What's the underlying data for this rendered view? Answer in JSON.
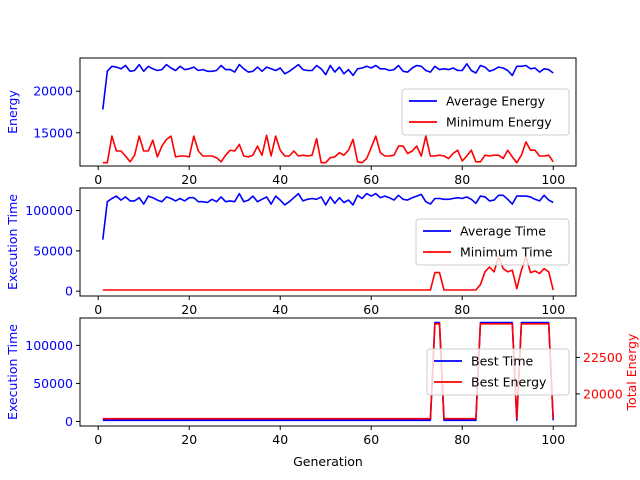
{
  "chart_data": [
    {
      "type": "line",
      "ylabel": "Energy",
      "ylim": [
        11000,
        24000
      ],
      "xlim": [
        -4,
        105
      ],
      "xticks": [
        0,
        20,
        40,
        60,
        80,
        100
      ],
      "yticks": [
        15000,
        20000
      ],
      "ytick_labels": [
        "15000",
        "20000"
      ],
      "legend_position": "right",
      "series": [
        {
          "name": "Average Energy",
          "color": "#0000ff",
          "x_start": 1,
          "values": [
            17800,
            22400,
            23000,
            22900,
            22700,
            23100,
            22400,
            22500,
            23200,
            22400,
            23000,
            22700,
            22500,
            22600,
            23200,
            22800,
            22500,
            23000,
            22600,
            22700,
            22900,
            22500,
            22600,
            22400,
            22400,
            22500,
            23100,
            22600,
            22600,
            22300,
            23200,
            22700,
            22300,
            22400,
            22900,
            22400,
            22900,
            22700,
            22500,
            22800,
            22100,
            22400,
            22800,
            23200,
            22600,
            22500,
            22500,
            23100,
            22700,
            22000,
            23100,
            22300,
            22900,
            22100,
            22600,
            21900,
            22700,
            22800,
            23000,
            22800,
            23100,
            22700,
            22700,
            22500,
            22600,
            23100,
            22400,
            22300,
            22800,
            23100,
            23000,
            22500,
            22300,
            23000,
            22600,
            22700,
            22600,
            22800,
            22500,
            22500,
            23300,
            22500,
            22200,
            23100,
            22900,
            22400,
            22600,
            22900,
            22800,
            22500,
            21900,
            23000,
            23000,
            23100,
            22700,
            22800,
            22300,
            22700,
            22600,
            22200
          ]
        },
        {
          "name": "Minimum Energy",
          "color": "#ff0000",
          "x_start": 1,
          "values": [
            11400,
            11400,
            14600,
            12800,
            12800,
            12200,
            11500,
            12300,
            14600,
            12800,
            12800,
            14100,
            12100,
            13400,
            14200,
            14600,
            12100,
            12200,
            12200,
            12100,
            14600,
            12800,
            12200,
            12200,
            12200,
            12000,
            11500,
            12300,
            12900,
            12800,
            13600,
            12200,
            12100,
            12300,
            13400,
            12300,
            14700,
            12200,
            14600,
            12900,
            12200,
            12200,
            12800,
            12200,
            12300,
            12200,
            12300,
            14300,
            11400,
            11400,
            12000,
            12100,
            12600,
            12300,
            12900,
            14200,
            11500,
            11400,
            11900,
            13200,
            14600,
            12600,
            12200,
            12200,
            12300,
            13400,
            13400,
            12500,
            12800,
            13400,
            12200,
            14600,
            12200,
            12200,
            12300,
            12200,
            11900,
            12500,
            12900,
            11600,
            12200,
            12900,
            11500,
            11500,
            12300,
            12200,
            12300,
            12300,
            11900,
            12900,
            12100,
            11400,
            12300,
            13900,
            12900,
            12900,
            12200,
            12200,
            12300,
            11500
          ]
        }
      ]
    },
    {
      "type": "line",
      "ylabel": "Execution Time",
      "ylim": [
        -6000,
        128000
      ],
      "xlim": [
        -4,
        105
      ],
      "xticks": [
        0,
        20,
        40,
        60,
        80,
        100
      ],
      "yticks": [
        0,
        50000,
        100000
      ],
      "ytick_labels": [
        "0",
        "50000",
        "100000"
      ],
      "legend_position": "right",
      "series": [
        {
          "name": "Average Time",
          "color": "#0000ff",
          "x_start": 1,
          "values": [
            64000,
            111000,
            115000,
            118000,
            113000,
            117000,
            112000,
            112000,
            116000,
            108000,
            118000,
            116000,
            113000,
            111000,
            117000,
            115000,
            112000,
            115000,
            112000,
            116000,
            116000,
            111000,
            111000,
            110000,
            114000,
            111000,
            117000,
            111000,
            112000,
            111000,
            121000,
            111000,
            113000,
            118000,
            111000,
            114000,
            117000,
            108000,
            118000,
            113000,
            107000,
            111000,
            116000,
            121000,
            112000,
            114000,
            115000,
            114000,
            117000,
            107000,
            117000,
            109000,
            116000,
            110000,
            113000,
            107000,
            119000,
            115000,
            121000,
            118000,
            121000,
            116000,
            118000,
            116000,
            113000,
            119000,
            114000,
            113000,
            116000,
            118000,
            120000,
            111000,
            108000,
            115000,
            115000,
            114000,
            114000,
            115000,
            116000,
            115000,
            117000,
            114000,
            109000,
            118000,
            117000,
            112000,
            113000,
            119000,
            119000,
            114000,
            108000,
            118000,
            118000,
            118000,
            117000,
            114000,
            112000,
            119000,
            113000,
            110000
          ]
        },
        {
          "name": "Minimum Time",
          "color": "#ff0000",
          "x_start": 1,
          "values": [
            1500,
            1500,
            1500,
            1500,
            1500,
            1500,
            1500,
            1500,
            1500,
            1500,
            1500,
            1500,
            1500,
            1500,
            1500,
            1500,
            1500,
            1500,
            1500,
            1500,
            1500,
            1500,
            1500,
            1500,
            1500,
            1500,
            1500,
            1500,
            1500,
            1500,
            1500,
            1500,
            1500,
            1500,
            1500,
            1500,
            1500,
            1500,
            1500,
            1500,
            1500,
            1500,
            1500,
            1500,
            1500,
            1500,
            1500,
            1500,
            1500,
            1500,
            1500,
            1500,
            1500,
            1500,
            1500,
            1500,
            1500,
            1500,
            1500,
            1500,
            1500,
            1500,
            1500,
            1500,
            1500,
            1500,
            1500,
            1500,
            1500,
            1500,
            1500,
            1500,
            1500,
            23000,
            23000,
            1500,
            1500,
            1500,
            1500,
            1500,
            1500,
            1500,
            1500,
            8000,
            24000,
            30000,
            24000,
            43000,
            28000,
            24000,
            26000,
            3000,
            26000,
            43000,
            23000,
            25000,
            22000,
            28000,
            24000,
            1500
          ]
        }
      ]
    },
    {
      "type": "line",
      "ylabel": "Execution Time",
      "ylabel_right": "Total Energy",
      "xlabel": "Generation",
      "ylim": [
        -6000,
        136000
      ],
      "ylim_right": [
        17800,
        25200
      ],
      "xlim": [
        -4,
        105
      ],
      "xticks": [
        0,
        20,
        40,
        60,
        80,
        100
      ],
      "yticks": [
        0,
        50000,
        100000
      ],
      "ytick_labels": [
        "0",
        "50000",
        "100000"
      ],
      "yticks_right": [
        20000,
        22500
      ],
      "ytick_labels_right": [
        "20000",
        "22500"
      ],
      "legend_position": "right",
      "series": [
        {
          "name": "Best Time",
          "color": "#0000ff",
          "axis": "left",
          "x_start": 1,
          "values": [
            1500,
            1500,
            1500,
            1500,
            1500,
            1500,
            1500,
            1500,
            1500,
            1500,
            1500,
            1500,
            1500,
            1500,
            1500,
            1500,
            1500,
            1500,
            1500,
            1500,
            1500,
            1500,
            1500,
            1500,
            1500,
            1500,
            1500,
            1500,
            1500,
            1500,
            1500,
            1500,
            1500,
            1500,
            1500,
            1500,
            1500,
            1500,
            1500,
            1500,
            1500,
            1500,
            1500,
            1500,
            1500,
            1500,
            1500,
            1500,
            1500,
            1500,
            1500,
            1500,
            1500,
            1500,
            1500,
            1500,
            1500,
            1500,
            1500,
            1500,
            1500,
            1500,
            1500,
            1500,
            1500,
            1500,
            1500,
            1500,
            1500,
            1500,
            1500,
            1500,
            1500,
            130000,
            130000,
            1500,
            1500,
            1500,
            1500,
            1500,
            1500,
            1500,
            1500,
            130000,
            130000,
            130000,
            130000,
            130000,
            130000,
            130000,
            130000,
            1500,
            130000,
            130000,
            130000,
            130000,
            130000,
            130000,
            130000,
            1500
          ]
        },
        {
          "name": "Best Energy",
          "color": "#ff0000",
          "axis": "right",
          "x_start": 1,
          "values": [
            18300,
            18300,
            18300,
            18300,
            18300,
            18300,
            18300,
            18300,
            18300,
            18300,
            18300,
            18300,
            18300,
            18300,
            18300,
            18300,
            18300,
            18300,
            18300,
            18300,
            18300,
            18300,
            18300,
            18300,
            18300,
            18300,
            18300,
            18300,
            18300,
            18300,
            18300,
            18300,
            18300,
            18300,
            18300,
            18300,
            18300,
            18300,
            18300,
            18300,
            18300,
            18300,
            18300,
            18300,
            18300,
            18300,
            18300,
            18300,
            18300,
            18300,
            18300,
            18300,
            18300,
            18300,
            18300,
            18300,
            18300,
            18300,
            18300,
            18300,
            18300,
            18300,
            18300,
            18300,
            18300,
            18300,
            18300,
            18300,
            18300,
            18300,
            18300,
            18300,
            18300,
            24800,
            24800,
            18300,
            18300,
            18300,
            18300,
            18300,
            18300,
            18300,
            18300,
            24800,
            24800,
            24800,
            24800,
            24800,
            24800,
            24800,
            24800,
            18300,
            24800,
            24800,
            24800,
            24800,
            24800,
            24800,
            24800,
            18300
          ]
        }
      ]
    }
  ]
}
